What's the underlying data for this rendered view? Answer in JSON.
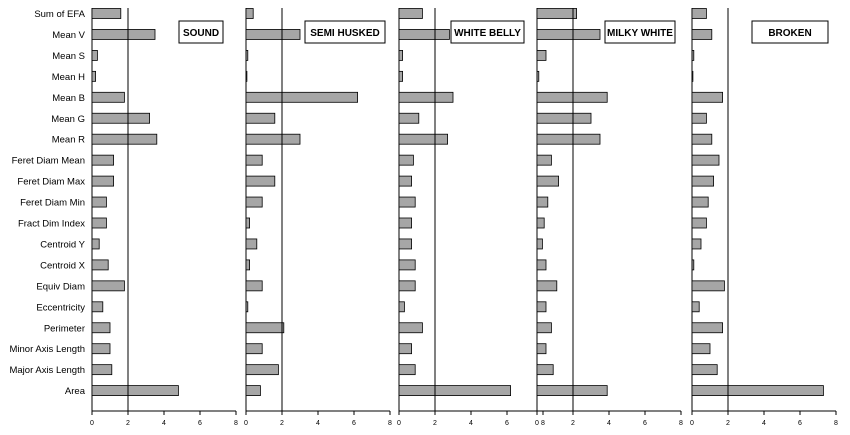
{
  "chart_data": {
    "type": "bar",
    "orientation": "horizontal",
    "categories": [
      "Sum of EFA",
      "Mean V",
      "Mean S",
      "Mean H",
      "Mean B",
      "Mean G",
      "Mean R",
      "Feret Diam Mean",
      "Feret Diam Max",
      "Feret Diam Min",
      "Fract Dim Index",
      "Centroid Y",
      "Centroid X",
      "Equiv Diam",
      "Eccentricity",
      "Perimeter",
      "Minor Axis Length",
      "Major Axis Length",
      "Area"
    ],
    "xlim": [
      0,
      8
    ],
    "xticks": [
      "0",
      "2",
      "4",
      "6",
      "8"
    ],
    "reference_line": 2,
    "grid": false,
    "bar_color": "#a6a6a6",
    "panels": [
      {
        "title": "SOUND",
        "values": [
          1.6,
          3.5,
          0.3,
          0.2,
          1.8,
          3.2,
          3.6,
          1.2,
          1.2,
          0.8,
          0.8,
          0.4,
          0.9,
          1.8,
          0.6,
          1.0,
          1.0,
          1.1,
          4.8
        ]
      },
      {
        "title": "SEMI HUSKED",
        "values": [
          0.4,
          3.0,
          0.1,
          0.05,
          6.2,
          1.6,
          3.0,
          0.9,
          1.6,
          0.9,
          0.2,
          0.6,
          0.2,
          0.9,
          0.1,
          2.1,
          0.9,
          1.8,
          0.8
        ]
      },
      {
        "title": "WHITE BELLY",
        "values": [
          1.3,
          2.8,
          0.2,
          0.2,
          3.0,
          1.1,
          2.7,
          0.8,
          0.7,
          0.9,
          0.7,
          0.7,
          0.9,
          0.9,
          0.3,
          1.3,
          0.7,
          0.9,
          6.2
        ]
      },
      {
        "title": "MILKY WHITE",
        "values": [
          2.2,
          3.5,
          0.5,
          0.1,
          3.9,
          3.0,
          3.5,
          0.8,
          1.2,
          0.6,
          0.4,
          0.3,
          0.5,
          1.1,
          0.5,
          0.8,
          0.5,
          0.9,
          3.9
        ]
      },
      {
        "title": "BROKEN",
        "values": [
          0.8,
          1.1,
          0.1,
          0.05,
          1.7,
          0.8,
          1.1,
          1.5,
          1.2,
          0.9,
          0.8,
          0.5,
          0.1,
          1.8,
          0.4,
          1.7,
          1.0,
          1.4,
          7.3
        ]
      }
    ]
  }
}
